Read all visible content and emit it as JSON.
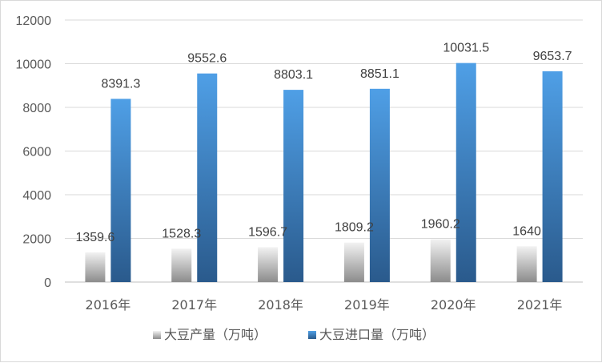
{
  "chart_data": {
    "type": "bar",
    "title": "",
    "xlabel": "",
    "ylabel": "",
    "categories": [
      "2016年",
      "2017年",
      "2018年",
      "2019年",
      "2020年",
      "2021年"
    ],
    "ylim": [
      0,
      12000
    ],
    "yticks": [
      0,
      2000,
      4000,
      6000,
      8000,
      10000,
      12000
    ],
    "grid": true,
    "legend_position": "bottom",
    "series": [
      {
        "name": "大豆产量（万吨）",
        "values": [
          1359.6,
          1528.3,
          1596.7,
          1809.2,
          1960.2,
          1640
        ],
        "labels": [
          "1359.6",
          "1528.3",
          "1596.7",
          "1809.2",
          "1960.2",
          "1640"
        ],
        "color_top": "#f2f2f2",
        "color_bottom": "#8c8c8c"
      },
      {
        "name": "大豆进口量（万吨）",
        "values": [
          8391.3,
          9552.6,
          8803.1,
          8851.1,
          10031.5,
          9653.7
        ],
        "labels": [
          "8391.3",
          "9552.6",
          "8803.1",
          "8851.1",
          "10031.5",
          "9653.7"
        ],
        "color_top": "#4f9fe6",
        "color_bottom": "#2a5a8c"
      }
    ]
  }
}
